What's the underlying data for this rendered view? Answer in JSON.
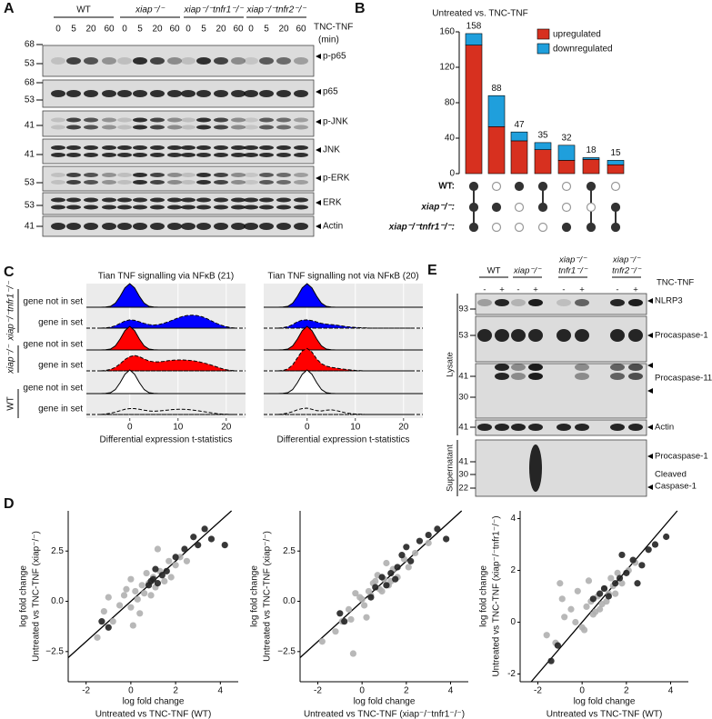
{
  "figure": {
    "panel_labels": [
      "A",
      "B",
      "C",
      "D",
      "E"
    ]
  },
  "blot_a": {
    "groups": [
      "WT",
      "xiap⁻/⁻",
      "xiap⁻/⁻tnfr1⁻/⁻",
      "xiap⁻/⁻tnfr2⁻/⁻"
    ],
    "treatment": "TNC-TNF",
    "time_unit": "(min)",
    "times": [
      "0",
      "5",
      "20",
      "60"
    ],
    "blots": [
      {
        "markers": [
          68,
          53
        ],
        "label": "p-p65"
      },
      {
        "markers": [
          68,
          53
        ],
        "label": "p65"
      },
      {
        "markers": [
          41
        ],
        "label": "p-JNK"
      },
      {
        "markers": [
          41
        ],
        "label": "JNK"
      },
      {
        "markers": [
          53
        ],
        "label": "p-ERK"
      },
      {
        "markers": [
          53
        ],
        "label": "ERK"
      },
      {
        "markers": [
          41
        ],
        "label": "Actin"
      }
    ]
  },
  "blot_e": {
    "groups": [
      [
        "WT"
      ],
      [
        "xiap⁻/⁻"
      ],
      [
        "xiap⁻/⁻",
        "tnfr1⁻/⁻"
      ],
      [
        "xiap⁻/⁻",
        "tnfr2⁻/⁻"
      ]
    ],
    "treatment": "TNC-TNF",
    "conditions": [
      "-",
      "+"
    ],
    "sections": [
      "Lysate",
      "Supernatant"
    ],
    "blots": [
      {
        "markers": [
          93
        ],
        "labels": [
          "NLRP3"
        ]
      },
      {
        "markers": [
          53
        ],
        "labels": [
          "Procaspase-1"
        ]
      },
      {
        "markers": [
          41,
          30
        ],
        "labels": [
          "Procaspase-11"
        ]
      },
      {
        "markers": [
          41
        ],
        "labels": [
          "Actin"
        ]
      },
      {
        "markers": [
          41,
          30,
          22
        ],
        "labels": [
          "Procaspase-1",
          "Cleaved",
          "Caspase-1"
        ]
      }
    ]
  },
  "chart_data": [
    {
      "type": "upset",
      "title": "Untreated vs. TNC-TNF",
      "series": [
        {
          "name": "upregulated",
          "color": "#d7301f",
          "values": [
            145,
            53,
            37,
            27,
            15,
            16,
            10
          ]
        },
        {
          "name": "downregulated",
          "color": "#1f9fdc",
          "values": [
            13,
            35,
            10,
            8,
            17,
            2,
            5
          ]
        }
      ],
      "totals": [
        158,
        88,
        47,
        35,
        32,
        18,
        15
      ],
      "ylim": [
        0,
        160
      ],
      "yticks": [
        0,
        40,
        80,
        120,
        160
      ],
      "legend": "upper right",
      "set_labels": [
        "WT:",
        "xiap⁻/⁻:",
        "xiap⁻/⁻tnfr1⁻/⁻:"
      ],
      "membership": [
        [
          1,
          1,
          1
        ],
        [
          0,
          1,
          0
        ],
        [
          1,
          0,
          0
        ],
        [
          1,
          1,
          0
        ],
        [
          0,
          0,
          1
        ],
        [
          1,
          0,
          1
        ],
        [
          0,
          1,
          1
        ]
      ]
    },
    {
      "type": "ridgeline",
      "title": "Tian TNF signalling via NFκB (21)",
      "xlabel": "Differential expression t-statistics",
      "row_labels": [
        "gene not in set",
        "gene in set",
        "gene not in set",
        "gene in set",
        "gene not in set",
        "gene in set"
      ],
      "group_labels": [
        "xiap⁻/⁻tnfr1⁻/⁻",
        "xiap⁻/⁻",
        "WT"
      ],
      "x": [
        -6,
        -5,
        -4,
        -3,
        -2,
        -1,
        0,
        1,
        2,
        3,
        4,
        5,
        6,
        7,
        8,
        9,
        10,
        11,
        12,
        13,
        14,
        15,
        16,
        17,
        18,
        19,
        20,
        21,
        22
      ],
      "xlim": [
        -9,
        24
      ],
      "xticks": [
        0,
        10,
        20
      ],
      "series": [
        {
          "color": "#0000ff",
          "values": [
            0,
            0.01,
            0.04,
            0.17,
            0.46,
            0.82,
            1,
            0.82,
            0.46,
            0.17,
            0.04,
            0.01,
            0,
            0,
            0,
            0,
            0,
            0,
            0,
            0,
            0,
            0,
            0,
            0,
            0,
            0,
            0,
            0,
            0
          ]
        },
        {
          "color": "#0000ff",
          "values": [
            0,
            0.01,
            0.04,
            0.1,
            0.2,
            0.3,
            0.35,
            0.33,
            0.27,
            0.2,
            0.15,
            0.13,
            0.15,
            0.2,
            0.27,
            0.35,
            0.43,
            0.5,
            0.54,
            0.55,
            0.53,
            0.48,
            0.4,
            0.3,
            0.2,
            0.12,
            0.06,
            0.02,
            0
          ]
        },
        {
          "color": "#ff0000",
          "values": [
            0,
            0.01,
            0.04,
            0.17,
            0.46,
            0.82,
            1,
            0.82,
            0.46,
            0.17,
            0.04,
            0.01,
            0,
            0,
            0,
            0,
            0,
            0,
            0,
            0,
            0,
            0,
            0,
            0,
            0,
            0,
            0,
            0,
            0
          ]
        },
        {
          "color": "#ff0000",
          "values": [
            0,
            0.02,
            0.06,
            0.15,
            0.3,
            0.48,
            0.6,
            0.65,
            0.6,
            0.5,
            0.42,
            0.38,
            0.38,
            0.4,
            0.43,
            0.45,
            0.46,
            0.46,
            0.45,
            0.43,
            0.4,
            0.35,
            0.3,
            0.24,
            0.17,
            0.1,
            0.05,
            0.02,
            0
          ]
        },
        {
          "color": "#ffffff",
          "values": [
            0,
            0.01,
            0.04,
            0.17,
            0.46,
            0.82,
            1,
            0.82,
            0.46,
            0.17,
            0.04,
            0.01,
            0,
            0,
            0,
            0,
            0,
            0,
            0,
            0,
            0,
            0,
            0,
            0,
            0,
            0,
            0,
            0,
            0
          ]
        },
        {
          "color": "#ebebeb",
          "values": [
            0,
            0.02,
            0.05,
            0.1,
            0.16,
            0.22,
            0.25,
            0.25,
            0.22,
            0.18,
            0.15,
            0.14,
            0.15,
            0.17,
            0.19,
            0.21,
            0.22,
            0.22,
            0.21,
            0.19,
            0.16,
            0.13,
            0.1,
            0.07,
            0.04,
            0.02,
            0.01,
            0,
            0
          ]
        }
      ]
    },
    {
      "type": "ridgeline",
      "title": "Tian TNF signalling not via NFκB (20)",
      "xlabel": "Differential expression t-statistics",
      "x": [
        -6,
        -5,
        -4,
        -3,
        -2,
        -1,
        0,
        1,
        2,
        3,
        4,
        5,
        6,
        7,
        8,
        9,
        10,
        11,
        12,
        13,
        14,
        15,
        16,
        17,
        18,
        19,
        20,
        21,
        22
      ],
      "xlim": [
        -9,
        24
      ],
      "xticks": [
        0,
        10,
        20
      ],
      "series": [
        {
          "color": "#0000ff",
          "values": [
            0,
            0.01,
            0.04,
            0.17,
            0.46,
            0.82,
            1,
            0.82,
            0.46,
            0.17,
            0.04,
            0.01,
            0,
            0,
            0,
            0,
            0,
            0,
            0,
            0,
            0,
            0,
            0,
            0,
            0,
            0,
            0,
            0,
            0
          ]
        },
        {
          "color": "#0000ff",
          "values": [
            0,
            0.02,
            0.06,
            0.15,
            0.27,
            0.34,
            0.35,
            0.32,
            0.26,
            0.2,
            0.17,
            0.15,
            0.13,
            0.1,
            0.07,
            0.05,
            0.03,
            0.02,
            0.01,
            0,
            0,
            0,
            0,
            0,
            0,
            0,
            0,
            0,
            0
          ]
        },
        {
          "color": "#ff0000",
          "values": [
            0,
            0.01,
            0.04,
            0.17,
            0.46,
            0.82,
            1,
            0.82,
            0.46,
            0.17,
            0.04,
            0.01,
            0,
            0,
            0,
            0,
            0,
            0,
            0,
            0,
            0,
            0,
            0,
            0,
            0,
            0,
            0,
            0,
            0
          ]
        },
        {
          "color": "#ff0000",
          "values": [
            0,
            0.02,
            0.08,
            0.25,
            0.55,
            0.85,
            0.95,
            0.8,
            0.5,
            0.3,
            0.2,
            0.15,
            0.12,
            0.09,
            0.06,
            0.04,
            0.02,
            0.01,
            0,
            0,
            0,
            0,
            0,
            0,
            0,
            0,
            0,
            0,
            0
          ]
        },
        {
          "color": "#ffffff",
          "values": [
            0,
            0.01,
            0.04,
            0.17,
            0.46,
            0.82,
            1,
            0.82,
            0.46,
            0.17,
            0.04,
            0.01,
            0,
            0,
            0,
            0,
            0,
            0,
            0,
            0,
            0,
            0,
            0,
            0,
            0,
            0,
            0,
            0,
            0
          ]
        },
        {
          "color": "#ebebeb",
          "values": [
            0,
            0.02,
            0.06,
            0.12,
            0.2,
            0.25,
            0.27,
            0.22,
            0.16,
            0.15,
            0.18,
            0.2,
            0.17,
            0.12,
            0.07,
            0.04,
            0.02,
            0.01,
            0,
            0,
            0,
            0,
            0,
            0,
            0,
            0,
            0,
            0,
            0
          ]
        }
      ]
    },
    {
      "type": "scatter",
      "xlabel": [
        "log fold change",
        "Untreated vs TNC-TNF (WT)"
      ],
      "ylabel": [
        "log fold change",
        "Untreated vs TNC-TNF (xiap⁻/⁻)"
      ],
      "xlim": [
        -2.8,
        4.8
      ],
      "xticks": [
        -2,
        0,
        2,
        4
      ],
      "ylim": [
        -4,
        4.5
      ],
      "yticks": [
        {
          "value": -2.5,
          "label": "−2.5"
        },
        {
          "value": 0,
          "label": "0.0"
        },
        2.5
      ],
      "series": [
        {
          "color": "#b0b0b0",
          "x": [
            -1.5,
            -1.2,
            -0.8,
            -0.5,
            -0.3,
            0,
            0.2,
            0.3,
            0.5,
            0.6,
            0.8,
            1.0,
            1.1,
            1.3,
            1.5,
            1.7,
            2.0,
            2.2,
            0.1,
            -0.2,
            0.4,
            0.9,
            1.2,
            -1,
            0.7,
            1.8,
            2.5,
            0.0
          ],
          "values": [
            -1.8,
            -0.5,
            -1.0,
            -0.2,
            0.3,
            -0.3,
            0.5,
            0.1,
            0.8,
            0.4,
            0.9,
            1.2,
            0.7,
            1.5,
            1.0,
            2.0,
            1.8,
            2.2,
            -1.2,
            0.6,
            -0.6,
            0.3,
            2.6,
            0.2,
            1.4,
            1.2,
            2.0,
            1.1
          ]
        },
        {
          "color": "#222222",
          "x": [
            -1.3,
            -1.0,
            0.8,
            1.0,
            1.2,
            1.4,
            1.6,
            2.0,
            2.4,
            2.8,
            3.0,
            3.3,
            3.6,
            4.2,
            1.1,
            0.9
          ],
          "values": [
            -1.0,
            -1.3,
            0.8,
            1.1,
            0.9,
            1.3,
            1.5,
            2.2,
            2.6,
            3.2,
            2.8,
            3.6,
            3.1,
            2.8,
            1.6,
            1.0
          ]
        }
      ]
    },
    {
      "type": "scatter",
      "xlabel": [
        "log fold change",
        "Untreated vs TNC-TNF (xiap⁻/⁻tnfr1⁻/⁻)"
      ],
      "ylabel": [
        "log fold change",
        "Untreated vs TNC-TNF (xiap⁻/⁻)"
      ],
      "xlim": [
        -2.8,
        4.8
      ],
      "xticks": [
        -2,
        0,
        2,
        4
      ],
      "ylim": [
        -4,
        4.5
      ],
      "yticks": [
        {
          "value": -2.5,
          "label": "−2.5"
        },
        {
          "value": 0,
          "label": "0.0"
        },
        2.5
      ],
      "series": [
        {
          "color": "#b0b0b0",
          "x": [
            -1.8,
            -1.2,
            -0.9,
            -0.6,
            -0.4,
            -0.1,
            0.1,
            0.3,
            0.4,
            0.6,
            0.8,
            1.0,
            1.2,
            1.4,
            1.6,
            1.9,
            2.1,
            0.2,
            -0.3,
            0.5,
            0.9,
            -0.5,
            0.7,
            1.1,
            2.4,
            3.0,
            0.0,
            1.3
          ],
          "values": [
            -2.0,
            -1.5,
            -1.0,
            -0.4,
            -2.6,
            0.2,
            -0.2,
            0.5,
            0.3,
            1.0,
            0.6,
            1.1,
            0.8,
            1.6,
            1.2,
            2.1,
            1.7,
            -0.8,
            0.4,
            0.9,
            0.5,
            -0.9,
            1.3,
            1.9,
            2.4,
            2.9,
            0.1,
            1.0
          ]
        },
        {
          "color": "#222222",
          "x": [
            -1.0,
            -0.8,
            0.6,
            0.9,
            1.1,
            1.3,
            1.5,
            1.8,
            2.2,
            2.6,
            3.0,
            3.4,
            3.8,
            1.6,
            0.4,
            2.0
          ],
          "values": [
            -0.6,
            -1.0,
            0.7,
            1.2,
            0.8,
            1.4,
            1.1,
            2.3,
            2.0,
            3.0,
            3.3,
            3.6,
            3.1,
            1.7,
            0.2,
            2.7
          ]
        }
      ]
    },
    {
      "type": "scatter",
      "xlabel": [
        "log fold change",
        "Untreated vs TNC-TNF (WT)"
      ],
      "ylabel": [
        "log fold change",
        "Untreated vs TNC-TNF (xiap⁻/⁻tnfr1⁻/⁻)"
      ],
      "xlim": [
        -2.8,
        4.8
      ],
      "xticks": [
        -2,
        0,
        2,
        4
      ],
      "ylim": [
        -2.3,
        4.3
      ],
      "yticks": [
        -2,
        0,
        2,
        4
      ],
      "series": [
        {
          "color": "#b0b0b0",
          "x": [
            -1.6,
            -1.2,
            -0.8,
            -0.5,
            -0.3,
            0,
            0.2,
            0.4,
            0.5,
            0.7,
            0.9,
            1.0,
            1.2,
            1.4,
            1.6,
            1.8,
            2.1,
            -0.9,
            0.1,
            0.6,
            1.1,
            -0.2,
            0.3,
            1.5,
            2.4,
            0.8,
            -1.0,
            1.3
          ],
          "values": [
            -0.5,
            -0.8,
            0.2,
            0.5,
            0.0,
            -0.2,
            0.6,
            0.8,
            0.3,
            1.0,
            0.7,
            1.3,
            1.1,
            1.4,
            1.9,
            1.5,
            2.0,
            0.9,
            -0.3,
            0.4,
            0.8,
            1.2,
            1.6,
            1.1,
            2.3,
            0.5,
            1.5,
            1.7
          ]
        },
        {
          "color": "#222222",
          "x": [
            -1.4,
            -1.1,
            0.8,
            1.0,
            1.2,
            1.5,
            1.7,
            2.0,
            2.3,
            2.7,
            3.0,
            3.3,
            3.8,
            0.5,
            1.8,
            2.5
          ],
          "values": [
            -1.5,
            -0.9,
            1.1,
            1.3,
            1.0,
            1.5,
            1.7,
            1.9,
            2.4,
            2.2,
            2.8,
            3.0,
            3.3,
            0.9,
            2.6,
            1.5
          ]
        }
      ]
    }
  ]
}
